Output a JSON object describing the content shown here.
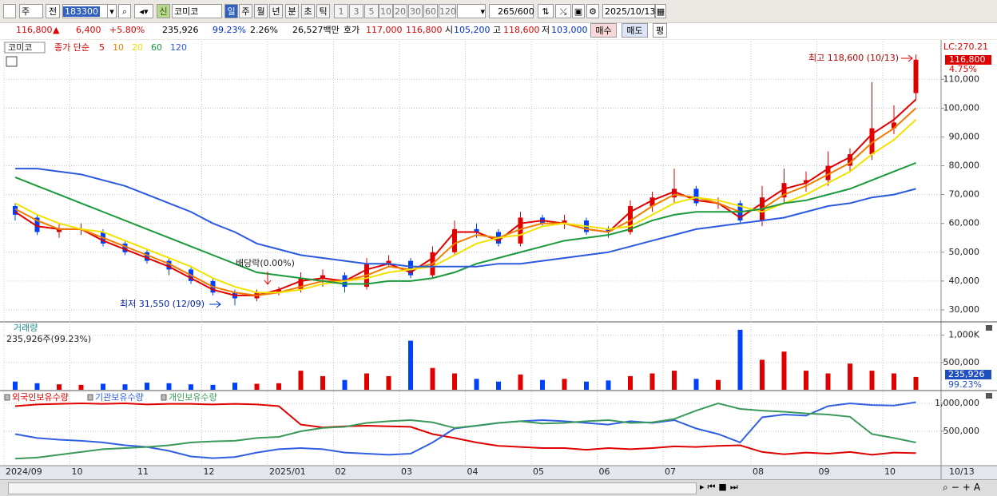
{
  "toolbar": {
    "market": "주",
    "prev": "전",
    "code": "183300",
    "new": "신",
    "name": "코미코",
    "periods": [
      "일",
      "주",
      "월",
      "년",
      "분",
      "초",
      "틱"
    ],
    "intervals": [
      "1",
      "3",
      "5",
      "10",
      "20",
      "30",
      "60",
      "120"
    ],
    "count": "265",
    "total": "/600",
    "date": "2025/10/13"
  },
  "quote": {
    "price": "116,800",
    "arrow": "▲",
    "change": "6,400",
    "rate": "+5.80%",
    "volume": "235,926",
    "volume_ratio": "99.23%",
    "turnover": "2.26%",
    "amount": "26,527백만",
    "ask_label": "호가",
    "ask": "117,000",
    "bid": "116,800",
    "open_label": "시",
    "open": "105,200",
    "high_label": "고",
    "high": "118,600",
    "low_label": "저",
    "low": "103,000",
    "buy": "매수",
    "sell": "매도",
    "avg": "평"
  },
  "chart_data": [
    {
      "type": "candlestick",
      "legend_title": "코미코",
      "legend_label": "종가 단순",
      "up_color": "#e00000",
      "down_color": "#0040ff",
      "categories": [
        "2024/09",
        null,
        null,
        "10",
        null,
        null,
        "11",
        null,
        null,
        "12",
        null,
        null,
        "2025/01",
        null,
        null,
        "02",
        null,
        null,
        "03",
        null,
        null,
        "04",
        null,
        null,
        "05",
        null,
        null,
        "06",
        null,
        null,
        "07",
        null,
        null,
        null,
        "08",
        null,
        null,
        "09",
        null,
        null,
        "10",
        null
      ],
      "open": [
        66000,
        62000,
        57000,
        58000,
        57000,
        53000,
        50000,
        47000,
        44000,
        40000,
        36000,
        34000,
        36000,
        37000,
        41000,
        42000,
        38000,
        46000,
        47000,
        42000,
        50000,
        58000,
        57000,
        53000,
        62000,
        60000,
        61000,
        58000,
        57000,
        66000,
        69000,
        72000,
        67000,
        67000,
        61000,
        69000,
        74000,
        75000,
        80000,
        84000,
        93000,
        105200
      ],
      "high": [
        67000,
        63000,
        60000,
        60000,
        58000,
        54000,
        51000,
        48000,
        45000,
        41000,
        37000,
        37000,
        38000,
        43000,
        44000,
        43000,
        48000,
        49000,
        48000,
        52000,
        61000,
        60000,
        58000,
        64000,
        63000,
        63000,
        62000,
        59000,
        68000,
        71000,
        79000,
        73000,
        69000,
        68000,
        73000,
        79000,
        78000,
        85000,
        86000,
        109000,
        101000,
        118600
      ],
      "low": [
        61000,
        56000,
        55000,
        56000,
        52000,
        49000,
        46000,
        42000,
        39000,
        35000,
        31550,
        33000,
        35000,
        36000,
        38000,
        36000,
        37000,
        45000,
        41000,
        41000,
        49000,
        55000,
        52000,
        52000,
        59000,
        58000,
        56000,
        55000,
        56000,
        64000,
        67000,
        66000,
        65000,
        60000,
        59000,
        67000,
        71000,
        73000,
        78000,
        82000,
        91000,
        103000
      ],
      "close": [
        63000,
        57000,
        58000,
        58000,
        53000,
        50000,
        47000,
        44000,
        40000,
        36000,
        34000,
        36000,
        37000,
        41000,
        42000,
        38000,
        46000,
        47000,
        42000,
        50000,
        58000,
        57000,
        53000,
        62000,
        60000,
        61000,
        57000,
        57000,
        66000,
        69000,
        72000,
        67000,
        67000,
        61000,
        69000,
        74000,
        75000,
        80000,
        84000,
        93000,
        95000,
        116800
      ],
      "series": [
        {
          "name": "5",
          "color": "#e00000",
          "values": [
            64000,
            59000,
            58000,
            58000,
            54000,
            51000,
            48000,
            45000,
            41000,
            37000,
            35000,
            35000,
            37000,
            40000,
            41000,
            40000,
            44000,
            46000,
            43000,
            48000,
            57000,
            57000,
            54000,
            60000,
            61000,
            60000,
            58000,
            57000,
            64000,
            68000,
            71000,
            68000,
            67000,
            62000,
            67000,
            72000,
            74000,
            79000,
            83000,
            91000,
            96000,
            103000
          ]
        },
        {
          "name": "10",
          "color": "#f07c00",
          "values": [
            65000,
            61000,
            58000,
            58000,
            55000,
            52000,
            49000,
            46000,
            42000,
            38000,
            36000,
            35000,
            36000,
            38000,
            40000,
            40000,
            42000,
            45000,
            44000,
            46000,
            53000,
            56000,
            55000,
            58000,
            60000,
            60000,
            58000,
            57000,
            61000,
            66000,
            70000,
            69000,
            67000,
            64000,
            65000,
            70000,
            73000,
            77000,
            81000,
            88000,
            93000,
            100000
          ]
        },
        {
          "name": "20",
          "color": "#f2e200",
          "values": [
            67000,
            63000,
            60000,
            58000,
            57000,
            54000,
            51000,
            48000,
            45000,
            41000,
            38000,
            36000,
            36000,
            37000,
            39000,
            40000,
            41000,
            43000,
            44000,
            45000,
            49000,
            53000,
            55000,
            56000,
            59000,
            60000,
            59000,
            58000,
            59000,
            63000,
            67000,
            69000,
            68000,
            66000,
            64000,
            67000,
            70000,
            74000,
            78000,
            84000,
            89000,
            96000
          ]
        },
        {
          "name": "60",
          "color": "#1a9a3a",
          "values": [
            76000,
            73000,
            70000,
            67000,
            64000,
            61000,
            58000,
            55000,
            52000,
            49000,
            46000,
            43000,
            42000,
            41000,
            40000,
            39000,
            39000,
            40000,
            40000,
            41000,
            43000,
            46000,
            48000,
            50000,
            52000,
            54000,
            55000,
            56000,
            58000,
            61000,
            63000,
            64000,
            64000,
            64000,
            65000,
            67000,
            68000,
            70000,
            72000,
            75000,
            78000,
            81000
          ]
        },
        {
          "name": "120",
          "color": "#2a5ae0",
          "values": [
            79000,
            79000,
            78000,
            77000,
            75000,
            73000,
            70000,
            67000,
            64000,
            60000,
            57000,
            53000,
            51000,
            49000,
            48000,
            47000,
            46000,
            46000,
            45000,
            45000,
            45000,
            45000,
            46000,
            46000,
            47000,
            48000,
            49000,
            50000,
            52000,
            54000,
            56000,
            58000,
            59000,
            60000,
            61000,
            62000,
            64000,
            66000,
            67000,
            69000,
            70000,
            72000
          ]
        }
      ],
      "ylim": [
        26100,
        123100
      ],
      "yticks": [
        {
          "value": 30000,
          "label": "30,000"
        },
        {
          "value": 40000,
          "label": "40,000"
        },
        {
          "value": 50000,
          "label": "50,000"
        },
        {
          "value": 60000,
          "label": "60,000"
        },
        {
          "value": 70000,
          "label": "70,000"
        },
        {
          "value": 80000,
          "label": "80,000"
        },
        {
          "value": 90000,
          "label": "90,000"
        },
        {
          "value": 100000,
          "label": "100,000"
        },
        {
          "value": 110000,
          "label": "110,000"
        }
      ],
      "grid": true,
      "annotations": {
        "high": "최고 118,600 (10/13)",
        "low": "최저 31,550 (12/09)",
        "dividend": "배당락(0.00%)",
        "lc": "LC:270.21",
        "price_tag": "116,800",
        "rate_tag": "4.75%"
      },
      "x_end_label": "10/13"
    },
    {
      "type": "bar",
      "title": "거래량",
      "subtitle": "235,926주(99.23%)",
      "tag": "235,926",
      "tag_rate": "99.23%",
      "values": [
        150000,
        120000,
        100000,
        90000,
        110000,
        100000,
        130000,
        120000,
        100000,
        90000,
        130000,
        110000,
        120000,
        350000,
        250000,
        180000,
        300000,
        250000,
        900000,
        400000,
        300000,
        200000,
        150000,
        280000,
        180000,
        200000,
        150000,
        170000,
        250000,
        300000,
        350000,
        200000,
        180000,
        1100000,
        550000,
        700000,
        350000,
        300000,
        480000,
        350000,
        300000,
        235926
      ],
      "ylim": [
        0,
        1230000
      ],
      "yticks": [
        {
          "value": 500000,
          "label": "500,000"
        },
        {
          "value": 1000000,
          "label": "1,000K"
        }
      ],
      "grid": true
    },
    {
      "type": "line",
      "series": [
        {
          "name": "외국인보유수량",
          "color": "#e00000",
          "values": [
            950000,
            980000,
            990000,
            1000000,
            990000,
            1000000,
            980000,
            990000,
            990000,
            980000,
            990000,
            980000,
            950000,
            620000,
            570000,
            590000,
            600000,
            590000,
            580000,
            450000,
            380000,
            300000,
            240000,
            220000,
            200000,
            200000,
            170000,
            200000,
            180000,
            200000,
            230000,
            220000,
            240000,
            250000,
            130000,
            90000,
            120000,
            100000,
            130000,
            80000,
            120000,
            110000
          ]
        },
        {
          "name": "기관보유수량",
          "color": "#3060e0",
          "values": [
            450000,
            380000,
            350000,
            330000,
            300000,
            250000,
            220000,
            150000,
            50000,
            20000,
            40000,
            120000,
            180000,
            200000,
            180000,
            120000,
            100000,
            80000,
            100000,
            300000,
            550000,
            600000,
            650000,
            680000,
            700000,
            680000,
            650000,
            620000,
            680000,
            650000,
            700000,
            550000,
            450000,
            300000,
            750000,
            800000,
            780000,
            950000,
            1000000,
            970000,
            960000,
            1020000
          ]
        },
        {
          "name": "개인보유수량",
          "color": "#3a9a5a",
          "values": [
            10000,
            30000,
            80000,
            130000,
            180000,
            200000,
            220000,
            250000,
            300000,
            320000,
            330000,
            380000,
            400000,
            500000,
            560000,
            580000,
            650000,
            680000,
            700000,
            660000,
            560000,
            600000,
            650000,
            680000,
            640000,
            650000,
            680000,
            700000,
            650000,
            660000,
            720000,
            870000,
            1000000,
            900000,
            870000,
            850000,
            820000,
            800000,
            760000,
            450000,
            380000,
            300000
          ]
        }
      ],
      "ylim": [
        -100000,
        1214000
      ],
      "yticks": [
        {
          "value": 500000,
          "label": "500,000"
        },
        {
          "value": 1000000,
          "label": "1,000,000"
        }
      ],
      "grid": true
    }
  ]
}
